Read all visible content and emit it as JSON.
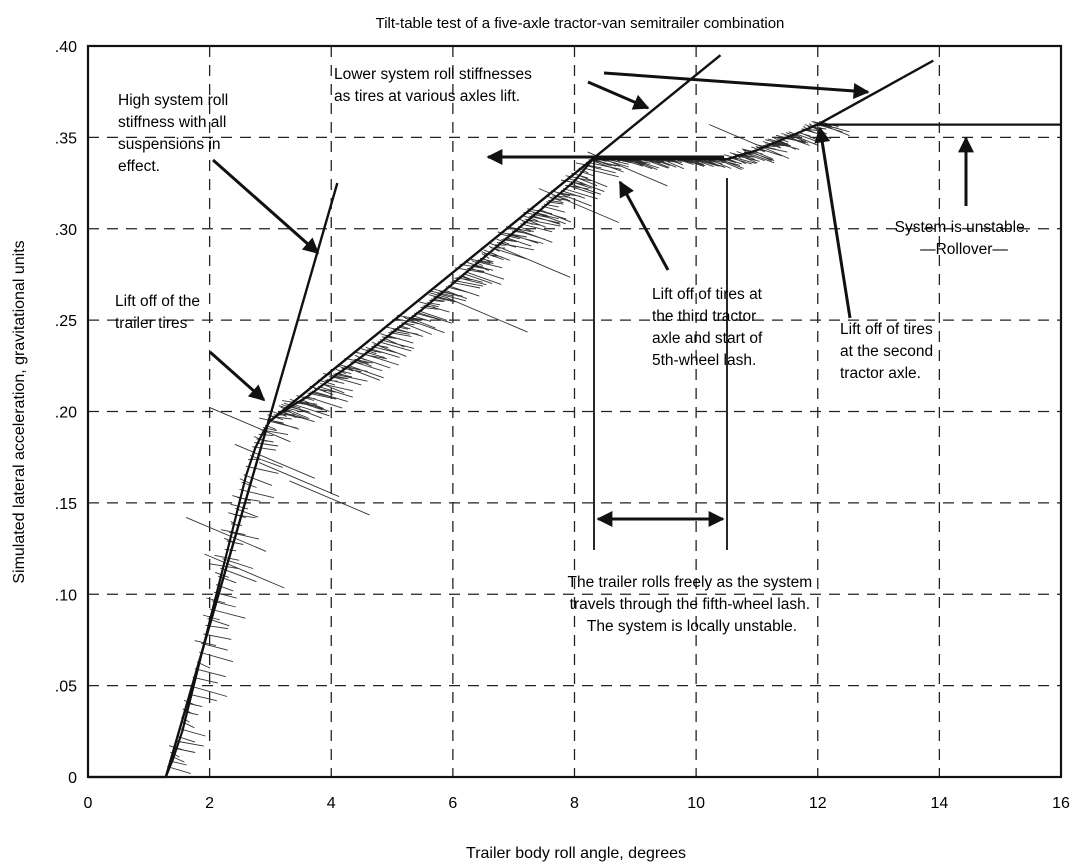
{
  "chart_data": {
    "type": "line",
    "title": "Tilt-table test of a five-axle tractor-van semitrailer combination",
    "xlabel": "Trailer body roll angle, degrees",
    "ylabel": "Simulated lateral acceleration,  gravitational units",
    "xlim": [
      0,
      16
    ],
    "ylim": [
      0,
      0.4
    ],
    "grid": true,
    "x_ticks": [
      0,
      2,
      4,
      6,
      8,
      10,
      12,
      14,
      16
    ],
    "x_tick_labels": [
      "0",
      "2",
      "4",
      "6",
      "8",
      "10",
      "12",
      "14",
      "16"
    ],
    "y_ticks": [
      0,
      0.05,
      0.1,
      0.15,
      0.2,
      0.25,
      0.3,
      0.35,
      0.4
    ],
    "y_tick_labels": [
      "0",
      ".05",
      ".10",
      ".15",
      ".20",
      ".25",
      ".30",
      ".35",
      ".40"
    ],
    "series": [
      {
        "x": [
          0,
          1.28,
          1.4,
          1.55,
          1.7,
          1.85,
          2.0,
          2.15,
          2.3,
          2.45,
          2.6,
          2.75,
          2.9,
          3.0,
          3.2,
          3.6,
          4.0,
          4.5,
          5.0,
          5.5,
          6.0,
          6.5,
          7.0,
          7.5,
          8.0,
          8.3,
          8.6,
          9.0,
          9.5,
          10.0,
          10.5,
          11.0,
          11.5,
          12.0,
          12.5,
          13.0,
          14.0,
          15.0,
          16.0
        ],
        "y": [
          0,
          0,
          0.01,
          0.025,
          0.045,
          0.065,
          0.085,
          0.105,
          0.125,
          0.145,
          0.165,
          0.18,
          0.19,
          0.195,
          0.2,
          0.208,
          0.218,
          0.23,
          0.243,
          0.256,
          0.27,
          0.284,
          0.298,
          0.312,
          0.326,
          0.338,
          0.338,
          0.338,
          0.338,
          0.338,
          0.338,
          0.343,
          0.35,
          0.357,
          0.357,
          0.357,
          0.357,
          0.357,
          0.357
        ]
      }
    ],
    "reference_lines": [
      {
        "x": [
          1.28,
          4.1
        ],
        "y": [
          0,
          0.325
        ]
      },
      {
        "x": [
          3.0,
          10.4
        ],
        "y": [
          0.195,
          0.395
        ]
      },
      {
        "x": [
          12.0,
          13.9
        ],
        "y": [
          0.357,
          0.392
        ]
      }
    ],
    "annotations": [
      {
        "lines": [
          "High system roll",
          "stiffness with all",
          "suspensions in",
          "effect."
        ]
      },
      {
        "lines": [
          "Lower system roll stiffnesses",
          "as tires at various axles lift."
        ]
      },
      {
        "lines": [
          "Lift off of the",
          "trailer tires"
        ]
      },
      {
        "lines": [
          "Lift off of tires at",
          "the third tractor",
          "axle and start of",
          "5th-wheel lash."
        ]
      },
      {
        "lines": [
          "Lift off of tires",
          "at the second",
          "tractor axle."
        ]
      },
      {
        "lines": [
          "System is unstable.",
          "—Rollover—"
        ]
      },
      {
        "lines": [
          "The trailer rolls freely as the system",
          "travels through the fifth-wheel lash.",
          "The system is locally unstable."
        ]
      }
    ]
  }
}
